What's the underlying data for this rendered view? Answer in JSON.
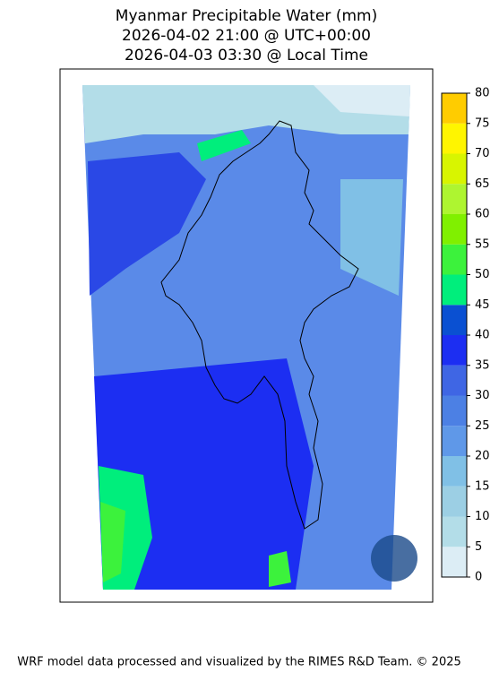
{
  "header": {
    "title_lines": [
      "Myanmar Precipitable Water (mm)",
      "2026-04-02 21:00 @ UTC+00:00",
      "2026-04-03 03:30 @ Local Time"
    ]
  },
  "colorbar": {
    "ticks": [
      0,
      5,
      10,
      15,
      20,
      25,
      30,
      35,
      40,
      45,
      50,
      55,
      60,
      65,
      70,
      75,
      80
    ],
    "colors": [
      "#dcedf5",
      "#b3dde8",
      "#9ccfe4",
      "#80c0e6",
      "#5f98e8",
      "#4c80e4",
      "#3f66e4",
      "#1c2ef2",
      "#0a50d2",
      "#00ee7c",
      "#3cf23c",
      "#80f000",
      "#aef530",
      "#d8f500",
      "#fff500",
      "#ffcc00"
    ]
  },
  "footer": {
    "text": "WRF model data processed and visualized by the RIMES R&D Team. © 2025"
  }
}
